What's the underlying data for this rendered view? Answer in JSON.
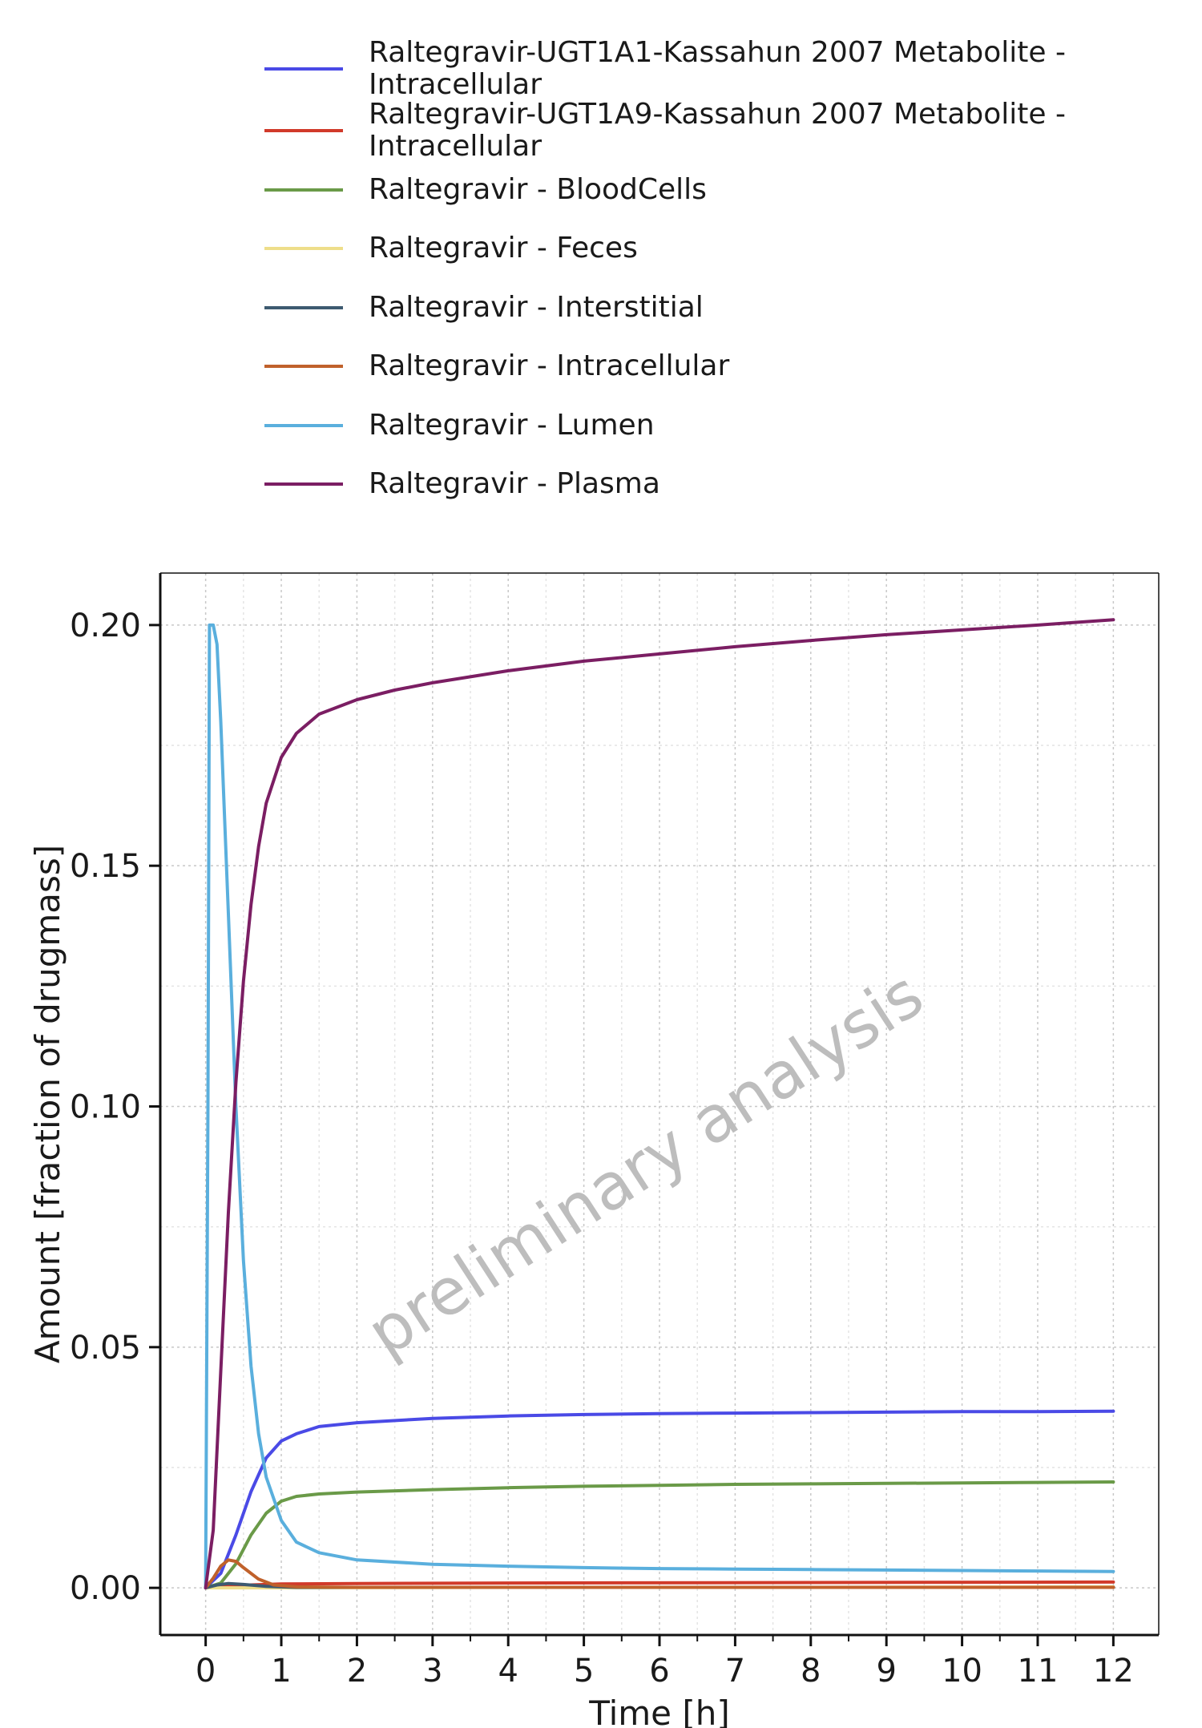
{
  "chart_data": {
    "type": "line",
    "title": "",
    "xlabel": "Time [h]",
    "ylabel": "Amount [fraction of drugmass]",
    "xlim": [
      -0.6,
      12.6
    ],
    "ylim": [
      -0.0098,
      0.2108
    ],
    "x_ticks": [
      "0",
      "1",
      "2",
      "3",
      "4",
      "5",
      "6",
      "7",
      "8",
      "9",
      "10",
      "11",
      "12"
    ],
    "y_ticks": [
      "0.00",
      "0.05",
      "0.10",
      "0.15",
      "0.20"
    ],
    "grid": true,
    "legend_position": "top",
    "watermark": "preliminary analysis",
    "series": [
      {
        "name": "Raltegravir-UGT1A1-Kassahun 2007 Metabolite -\nIntracellular",
        "color": "#4a4ae6",
        "points": [
          [
            0,
            0
          ],
          [
            0.2,
            0.003
          ],
          [
            0.4,
            0.011
          ],
          [
            0.6,
            0.02
          ],
          [
            0.8,
            0.027
          ],
          [
            1.0,
            0.0305
          ],
          [
            1.2,
            0.032
          ],
          [
            1.5,
            0.0335
          ],
          [
            2,
            0.0343
          ],
          [
            3,
            0.0352
          ],
          [
            4,
            0.0357
          ],
          [
            5,
            0.036
          ],
          [
            6,
            0.0362
          ],
          [
            7,
            0.0363
          ],
          [
            8,
            0.0364
          ],
          [
            9,
            0.0365
          ],
          [
            10,
            0.0366
          ],
          [
            11,
            0.0366
          ],
          [
            12,
            0.0367
          ]
        ]
      },
      {
        "name": "Raltegravir-UGT1A9-Kassahun 2007 Metabolite -\nIntracellular",
        "color": "#d13a2a",
        "points": [
          [
            0,
            0
          ],
          [
            0.3,
            0.0003
          ],
          [
            0.6,
            0.0006
          ],
          [
            1,
            0.0008
          ],
          [
            2,
            0.0009
          ],
          [
            4,
            0.001
          ],
          [
            8,
            0.0011
          ],
          [
            12,
            0.0012
          ]
        ]
      },
      {
        "name": "Raltegravir - BloodCells",
        "color": "#6a9a48",
        "points": [
          [
            0,
            0
          ],
          [
            0.2,
            0.001
          ],
          [
            0.4,
            0.005
          ],
          [
            0.6,
            0.011
          ],
          [
            0.8,
            0.0155
          ],
          [
            1.0,
            0.018
          ],
          [
            1.2,
            0.019
          ],
          [
            1.5,
            0.0195
          ],
          [
            2,
            0.0199
          ],
          [
            3,
            0.0204
          ],
          [
            4,
            0.0208
          ],
          [
            5,
            0.0211
          ],
          [
            6,
            0.0213
          ],
          [
            7,
            0.0215
          ],
          [
            8,
            0.0216
          ],
          [
            9,
            0.0217
          ],
          [
            10,
            0.0218
          ],
          [
            11,
            0.0219
          ],
          [
            12,
            0.022
          ]
        ]
      },
      {
        "name": "Raltegravir - Feces",
        "color": "#eede8a",
        "points": [
          [
            0,
            0
          ],
          [
            1,
            0
          ],
          [
            4,
            0.0001
          ],
          [
            8,
            0.0001
          ],
          [
            12,
            0.0002
          ]
        ]
      },
      {
        "name": "Raltegravir - Interstitial",
        "color": "#3d5a70",
        "points": [
          [
            0,
            0
          ],
          [
            0.15,
            0.0006
          ],
          [
            0.3,
            0.0009
          ],
          [
            0.5,
            0.0007
          ],
          [
            0.8,
            0.0003
          ],
          [
            1.2,
            0.0001
          ],
          [
            2,
            0.0001
          ],
          [
            6,
            0.0001
          ],
          [
            12,
            0.0001
          ]
        ]
      },
      {
        "name": "Raltegravir - Intracellular",
        "color": "#c0612b",
        "points": [
          [
            0,
            0
          ],
          [
            0.1,
            0.002
          ],
          [
            0.2,
            0.0045
          ],
          [
            0.3,
            0.0058
          ],
          [
            0.4,
            0.0055
          ],
          [
            0.5,
            0.0042
          ],
          [
            0.7,
            0.0018
          ],
          [
            0.9,
            0.0006
          ],
          [
            1.2,
            0.0002
          ],
          [
            2,
            0.0001
          ],
          [
            12,
            0.0001
          ]
        ]
      },
      {
        "name": "Raltegravir - Lumen",
        "color": "#5aafdd",
        "points": [
          [
            0,
            0
          ],
          [
            0.03,
            0.1
          ],
          [
            0.05,
            0.2
          ],
          [
            0.1,
            0.2
          ],
          [
            0.15,
            0.196
          ],
          [
            0.2,
            0.18
          ],
          [
            0.3,
            0.14
          ],
          [
            0.4,
            0.1
          ],
          [
            0.5,
            0.068
          ],
          [
            0.6,
            0.046
          ],
          [
            0.7,
            0.032
          ],
          [
            0.8,
            0.023
          ],
          [
            1.0,
            0.014
          ],
          [
            1.2,
            0.0095
          ],
          [
            1.5,
            0.0073
          ],
          [
            2,
            0.0058
          ],
          [
            3,
            0.0049
          ],
          [
            4,
            0.0045
          ],
          [
            5,
            0.0042
          ],
          [
            6,
            0.004
          ],
          [
            7,
            0.0039
          ],
          [
            8,
            0.0038
          ],
          [
            9,
            0.0037
          ],
          [
            10,
            0.0036
          ],
          [
            11,
            0.0035
          ],
          [
            12,
            0.0034
          ]
        ]
      },
      {
        "name": "Raltegravir - Plasma",
        "color": "#7b1e63",
        "points": [
          [
            0,
            0
          ],
          [
            0.1,
            0.012
          ],
          [
            0.2,
            0.045
          ],
          [
            0.3,
            0.078
          ],
          [
            0.4,
            0.105
          ],
          [
            0.5,
            0.126
          ],
          [
            0.6,
            0.142
          ],
          [
            0.7,
            0.154
          ],
          [
            0.8,
            0.163
          ],
          [
            1.0,
            0.1725
          ],
          [
            1.2,
            0.1775
          ],
          [
            1.5,
            0.1815
          ],
          [
            2,
            0.1845
          ],
          [
            2.5,
            0.1865
          ],
          [
            3,
            0.188
          ],
          [
            4,
            0.1905
          ],
          [
            5,
            0.1925
          ],
          [
            6,
            0.194
          ],
          [
            7,
            0.1955
          ],
          [
            8,
            0.1968
          ],
          [
            9,
            0.198
          ],
          [
            10,
            0.199
          ],
          [
            11,
            0.2
          ],
          [
            12,
            0.2011
          ]
        ]
      }
    ]
  }
}
